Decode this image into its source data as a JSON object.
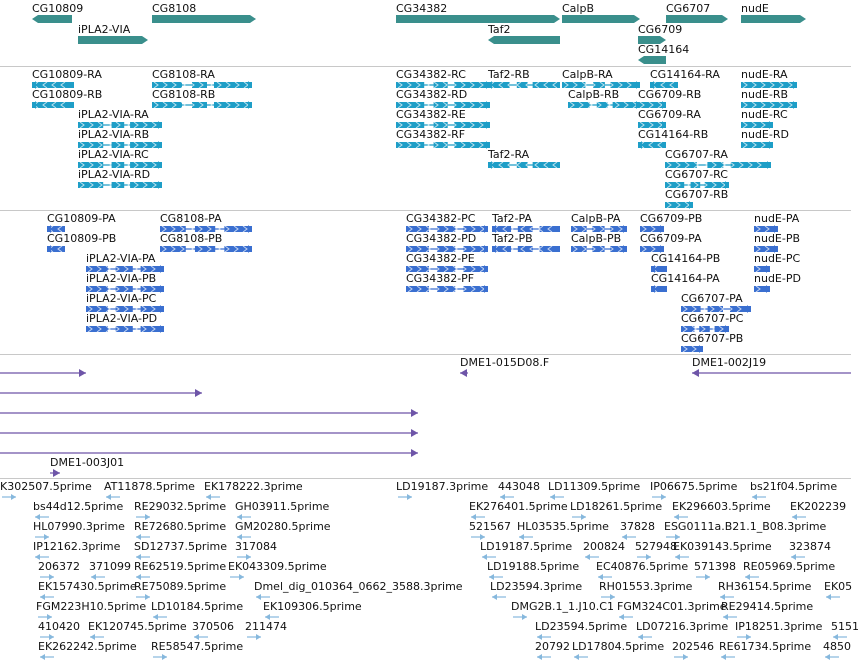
{
  "colors": {
    "gene": "#3a8f8c",
    "transcript": "#1e9ec7",
    "protein": "#3a6fd0",
    "clone": "#6e55a8",
    "est": "#86b8dd",
    "divider": "#c8c8c8"
  },
  "tracks": {
    "genes": [
      {
        "label": "CG10809",
        "strand": "-"
      },
      {
        "label": "CG8108",
        "strand": "+"
      },
      {
        "label": "iPLA2-VIA",
        "strand": "+"
      },
      {
        "label": "CG34382",
        "strand": "+"
      },
      {
        "label": "Taf2",
        "strand": "-"
      },
      {
        "label": "CalpB",
        "strand": "+"
      },
      {
        "label": "CG6707",
        "strand": "+"
      },
      {
        "label": "nudE",
        "strand": "+"
      },
      {
        "label": "CG6709",
        "strand": "+"
      },
      {
        "label": "CG14164",
        "strand": "-"
      }
    ],
    "transcripts": [
      {
        "label": "CG10809-RA"
      },
      {
        "label": "CG8108-RA"
      },
      {
        "label": "CG10809-RB"
      },
      {
        "label": "CG8108-RB"
      },
      {
        "label": "iPLA2-VIA-RA"
      },
      {
        "label": "iPLA2-VIA-RB"
      },
      {
        "label": "iPLA2-VIA-RC"
      },
      {
        "label": "iPLA2-VIA-RD"
      },
      {
        "label": "CG34382-RC"
      },
      {
        "label": "CG34382-RD"
      },
      {
        "label": "CG34382-RE"
      },
      {
        "label": "CG34382-RF"
      },
      {
        "label": "Taf2-RB"
      },
      {
        "label": "Taf2-RA"
      },
      {
        "label": "CalpB-RA"
      },
      {
        "label": "CalpB-RB"
      },
      {
        "label": "CG14164-RA"
      },
      {
        "label": "CG6709-RB"
      },
      {
        "label": "CG6709-RA"
      },
      {
        "label": "CG14164-RB"
      },
      {
        "label": "CG6707-RA"
      },
      {
        "label": "CG6707-RC"
      },
      {
        "label": "CG6707-RB"
      },
      {
        "label": "nudE-RA"
      },
      {
        "label": "nudE-RB"
      },
      {
        "label": "nudE-RC"
      },
      {
        "label": "nudE-RD"
      }
    ],
    "proteins": [
      {
        "label": "CG10809-PA"
      },
      {
        "label": "CG8108-PA"
      },
      {
        "label": "CG10809-PB"
      },
      {
        "label": "CG8108-PB"
      },
      {
        "label": "iPLA2-VIA-PA"
      },
      {
        "label": "iPLA2-VIA-PB"
      },
      {
        "label": "iPLA2-VIA-PC"
      },
      {
        "label": "iPLA2-VIA-PD"
      },
      {
        "label": "CG34382-PC"
      },
      {
        "label": "CG34382-PD"
      },
      {
        "label": "CG34382-PE"
      },
      {
        "label": "CG34382-PF"
      },
      {
        "label": "Taf2-PA"
      },
      {
        "label": "Taf2-PB"
      },
      {
        "label": "CalpB-PA"
      },
      {
        "label": "CalpB-PB"
      },
      {
        "label": "CG6709-PB"
      },
      {
        "label": "CG6709-PA"
      },
      {
        "label": "CG14164-PB"
      },
      {
        "label": "CG14164-PA"
      },
      {
        "label": "CG6707-PA"
      },
      {
        "label": "CG6707-PC"
      },
      {
        "label": "CG6707-PB"
      },
      {
        "label": "nudE-PA"
      },
      {
        "label": "nudE-PB"
      },
      {
        "label": "nudE-PC"
      },
      {
        "label": "nudE-PD"
      }
    ],
    "clones": [
      {
        "label": "DME1-015D08.F"
      },
      {
        "label": "DME1-002J19"
      },
      {
        "label": "DME1-003J01"
      }
    ],
    "ests": [
      {
        "label": "K302507.5prime"
      },
      {
        "label": "AT11878.5prime"
      },
      {
        "label": "EK178222.3prime"
      },
      {
        "label": "LD19187.3prime"
      },
      {
        "label": "443048"
      },
      {
        "label": "LD11309.5prime"
      },
      {
        "label": "IP06675.5prime"
      },
      {
        "label": "bs21f04.5prime"
      },
      {
        "label": "bs44d12.5prime"
      },
      {
        "label": "RE29032.5prime"
      },
      {
        "label": "GH03911.5prime"
      },
      {
        "label": "EK276401.5prime"
      },
      {
        "label": "LD18261.5prime"
      },
      {
        "label": "EK296603.5prime"
      },
      {
        "label": "EK202239"
      },
      {
        "label": "HL07990.3prime"
      },
      {
        "label": "RE72680.5prime"
      },
      {
        "label": "GM20280.5prime"
      },
      {
        "label": "521567"
      },
      {
        "label": "HL03535.5prime"
      },
      {
        "label": "37828"
      },
      {
        "label": "ESG0111a.B21.1_B08.3prime"
      },
      {
        "label": "IP12162.3prime"
      },
      {
        "label": "SD12737.5prime"
      },
      {
        "label": "317084"
      },
      {
        "label": "LD19187.5prime"
      },
      {
        "label": "200824"
      },
      {
        "label": "527948"
      },
      {
        "label": "EK039143.5prime"
      },
      {
        "label": "323874"
      },
      {
        "label": "206372"
      },
      {
        "label": "371099"
      },
      {
        "label": "RE62519.5prime"
      },
      {
        "label": "EK043309.5prime"
      },
      {
        "label": "LD19188.5prime"
      },
      {
        "label": "EC40876.5prime"
      },
      {
        "label": "571398"
      },
      {
        "label": "RE05969.5prime"
      },
      {
        "label": "EK157430.5prime"
      },
      {
        "label": "RE75089.5prime"
      },
      {
        "label": "Dmel_dig_010364_0662_3588.3prime"
      },
      {
        "label": "LD23594.3prime"
      },
      {
        "label": "RH01553.3prime"
      },
      {
        "label": "RH36154.5prime"
      },
      {
        "label": "EK05"
      },
      {
        "label": "FGM223H10.5prime"
      },
      {
        "label": "LD10184.5prime"
      },
      {
        "label": "EK109306.5prime"
      },
      {
        "label": "DMG2B.1_1.J10.C1"
      },
      {
        "label": "FGM324C01.3prime"
      },
      {
        "label": "RE29414.5prime"
      },
      {
        "label": "410420"
      },
      {
        "label": "EK120745.5prime"
      },
      {
        "label": "370506"
      },
      {
        "label": "211474"
      },
      {
        "label": "LD23594.5prime"
      },
      {
        "label": "LD07216.3prime"
      },
      {
        "label": "IP18251.3prime"
      },
      {
        "label": "5151"
      },
      {
        "label": "EK262242.5prime"
      },
      {
        "label": "RE58547.5prime"
      },
      {
        "label": "20792"
      },
      {
        "label": "LD17804.5prime"
      },
      {
        "label": "202546"
      },
      {
        "label": "RE61734.5prime"
      },
      {
        "label": "4850"
      }
    ]
  }
}
